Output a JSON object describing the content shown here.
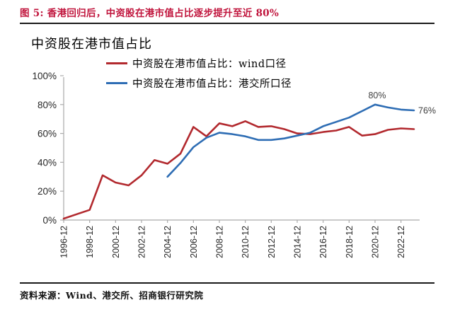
{
  "figure_title": "图 5: 香港回归后，中资股在港市值占比逐步提升至近 80%",
  "source": "资料来源：Wind、港交所、招商银行研究院",
  "colors": {
    "accent_red": "#C0143C",
    "axis_gray": "#ABABAB",
    "tick_text": "#262626",
    "annotation_text": "#404040"
  },
  "chart_data": {
    "type": "line",
    "title": "中资股在港市值占比",
    "xlabel": "",
    "ylabel": "",
    "ylim": [
      0,
      100
    ],
    "grid": false,
    "legend_position": "top",
    "y_ticks": [
      {
        "label": "0%",
        "value": 0
      },
      {
        "label": "20%",
        "value": 20
      },
      {
        "label": "40%",
        "value": 40
      },
      {
        "label": "60%",
        "value": 60
      },
      {
        "label": "80%",
        "value": 80
      },
      {
        "label": "100%",
        "value": 100
      }
    ],
    "x_ticks": [
      {
        "label": "1996-12",
        "year": 1996
      },
      {
        "label": "1998-12",
        "year": 1998
      },
      {
        "label": "2000-12",
        "year": 2000
      },
      {
        "label": "2002-12",
        "year": 2002
      },
      {
        "label": "2004-12",
        "year": 2004
      },
      {
        "label": "2006-12",
        "year": 2006
      },
      {
        "label": "2008-12",
        "year": 2008
      },
      {
        "label": "2010-12",
        "year": 2010
      },
      {
        "label": "2012-12",
        "year": 2012
      },
      {
        "label": "2014-12",
        "year": 2014
      },
      {
        "label": "2016-12",
        "year": 2016
      },
      {
        "label": "2018-12",
        "year": 2018
      },
      {
        "label": "2020-12",
        "year": 2020
      },
      {
        "label": "2022-12",
        "year": 2022
      }
    ],
    "x_range": [
      1996,
      2023
    ],
    "series": [
      {
        "name": "中资股在港市值占比：wind口径",
        "color": "#B2292E",
        "start_year": 1996,
        "values": [
          1,
          4,
          7,
          31,
          26,
          24,
          31,
          41.5,
          39,
          46,
          64.5,
          58,
          67,
          65,
          68.5,
          64.5,
          65,
          63,
          60,
          59.5,
          61,
          62,
          64.5,
          58.5,
          59.5,
          62.5,
          63.5,
          63
        ]
      },
      {
        "name": "中资股在港市值占比：港交所口径",
        "color": "#2E6DB4",
        "start_year": 2004,
        "values": [
          30,
          39.5,
          50.5,
          57,
          60.5,
          59.5,
          58,
          55.5,
          55.5,
          56.5,
          58.5,
          60.5,
          65,
          68,
          71,
          75.5,
          80,
          78,
          76.5,
          76
        ]
      }
    ],
    "annotations": [
      {
        "text": "80%",
        "year": 2020,
        "value": 80
      },
      {
        "text": "76%",
        "year": 2023,
        "value": 76
      }
    ]
  }
}
